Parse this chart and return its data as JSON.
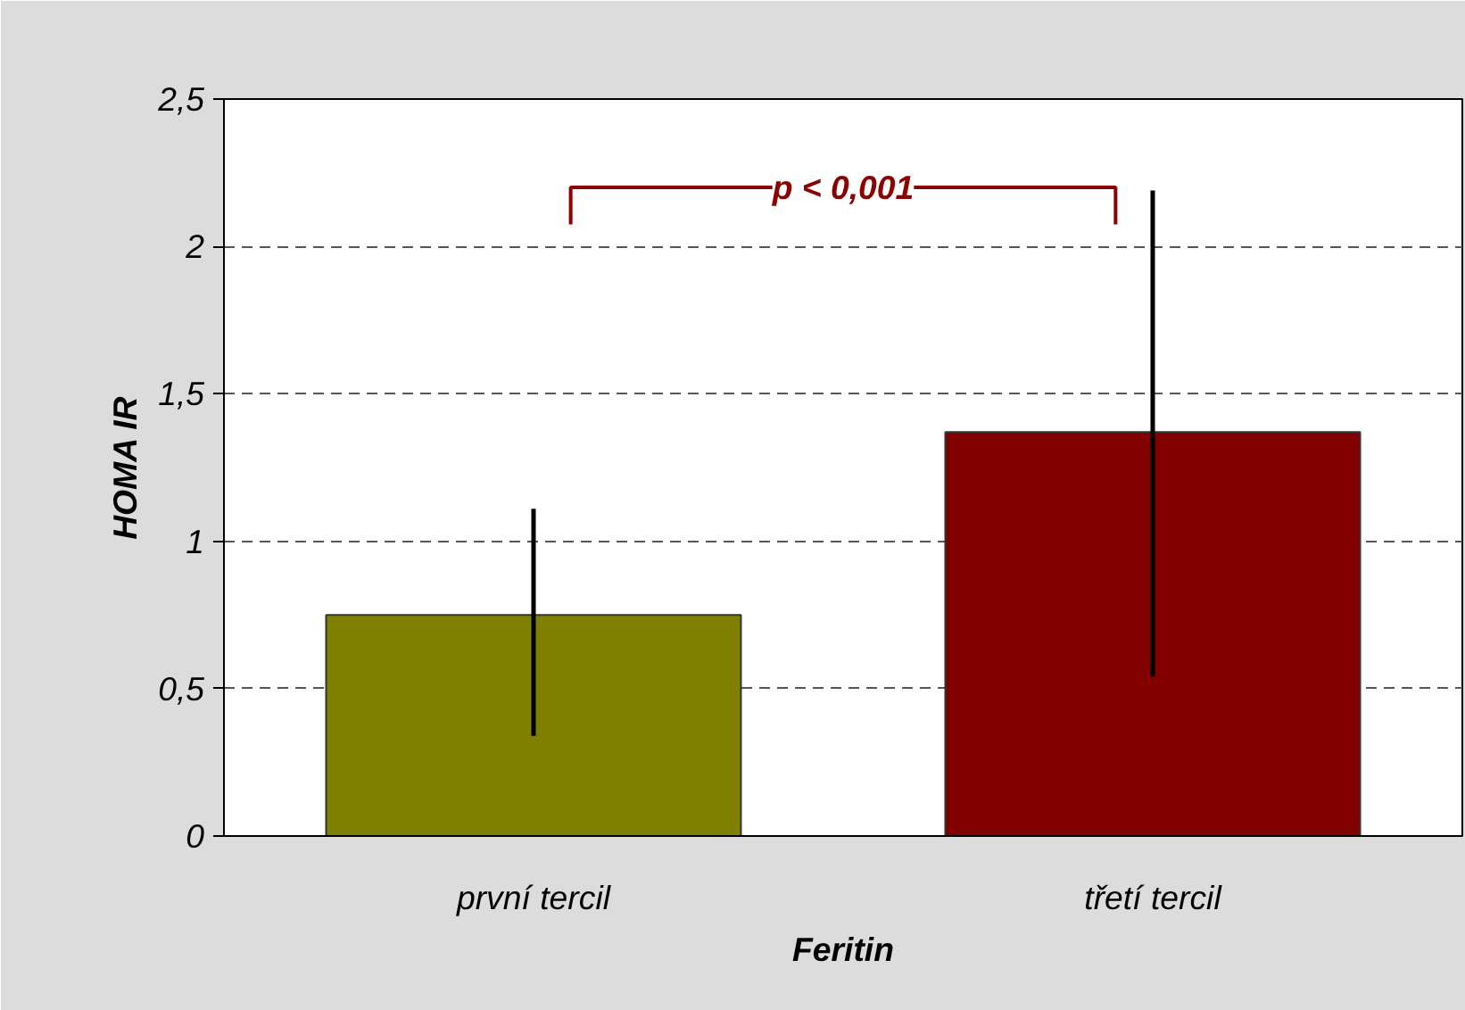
{
  "chart_data": {
    "type": "bar",
    "categories": [
      "první tercil",
      "třetí tercil"
    ],
    "values": [
      0.75,
      1.37
    ],
    "colors": [
      "#808000",
      "#800000"
    ],
    "errors": [
      [
        0.34,
        1.11
      ],
      [
        0.54,
        2.19
      ]
    ],
    "xlabel": "Feritin",
    "ylabel": "HOMA IR",
    "ylim": [
      0,
      2.5
    ],
    "yticks": [
      {
        "value": 0,
        "label": "0"
      },
      {
        "value": 0.5,
        "label": "0,5"
      },
      {
        "value": 1,
        "label": "1"
      },
      {
        "value": 1.5,
        "label": "1,5"
      },
      {
        "value": 2,
        "label": "2"
      },
      {
        "value": 2.5,
        "label": "2,5"
      }
    ],
    "grid": "y",
    "annotations": [
      "p < 0,001"
    ]
  }
}
